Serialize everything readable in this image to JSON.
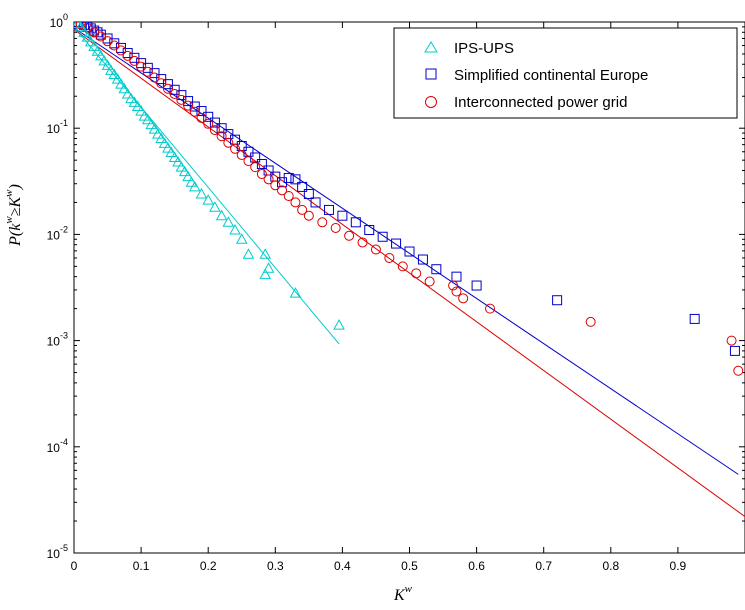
{
  "chart_data": {
    "type": "scatter",
    "xlabel": {
      "base": "K",
      "sup": "w"
    },
    "ylabel": {
      "p": "P(",
      "k": "k",
      "sup1": "w",
      "geq": "≥",
      "K": "K",
      "sup2": "w",
      "close": ")"
    },
    "xlim": [
      0,
      1
    ],
    "ylim": [
      1e-05,
      1
    ],
    "yscale": "log",
    "x_ticks": [
      "0",
      "0.1",
      "0.2",
      "0.3",
      "0.4",
      "0.5",
      "0.6",
      "0.7",
      "0.8",
      "0.9"
    ],
    "x_tick_values": [
      0,
      0.1,
      0.2,
      0.3,
      0.4,
      0.5,
      0.6,
      0.7,
      0.8,
      0.9
    ],
    "y_ticks": [
      {
        "base": "10",
        "exp": "0",
        "value": 1
      },
      {
        "base": "10",
        "exp": "-1",
        "value": 0.1
      },
      {
        "base": "10",
        "exp": "-2",
        "value": 0.01
      },
      {
        "base": "10",
        "exp": "-3",
        "value": 0.001
      },
      {
        "base": "10",
        "exp": "-4",
        "value": 0.0001
      },
      {
        "base": "10",
        "exp": "-5",
        "value": 1e-05
      }
    ],
    "grid": false,
    "legend_position": "top-right",
    "series": [
      {
        "name": "IPS-UPS",
        "marker": "triangle",
        "color": "#00cccc",
        "points": [
          [
            0.005,
            0.97
          ],
          [
            0.01,
            0.9
          ],
          [
            0.015,
            0.8
          ],
          [
            0.02,
            0.72
          ],
          [
            0.025,
            0.65
          ],
          [
            0.03,
            0.59
          ],
          [
            0.035,
            0.53
          ],
          [
            0.04,
            0.48
          ],
          [
            0.045,
            0.43
          ],
          [
            0.05,
            0.39
          ],
          [
            0.055,
            0.35
          ],
          [
            0.06,
            0.32
          ],
          [
            0.065,
            0.29
          ],
          [
            0.07,
            0.26
          ],
          [
            0.075,
            0.235
          ],
          [
            0.08,
            0.21
          ],
          [
            0.085,
            0.19
          ],
          [
            0.09,
            0.175
          ],
          [
            0.095,
            0.16
          ],
          [
            0.1,
            0.145
          ],
          [
            0.105,
            0.13
          ],
          [
            0.11,
            0.12
          ],
          [
            0.115,
            0.108
          ],
          [
            0.12,
            0.098
          ],
          [
            0.125,
            0.088
          ],
          [
            0.13,
            0.08
          ],
          [
            0.135,
            0.072
          ],
          [
            0.14,
            0.065
          ],
          [
            0.145,
            0.059
          ],
          [
            0.15,
            0.053
          ],
          [
            0.155,
            0.048
          ],
          [
            0.16,
            0.043
          ],
          [
            0.165,
            0.039
          ],
          [
            0.17,
            0.035
          ],
          [
            0.175,
            0.031
          ],
          [
            0.18,
            0.028
          ],
          [
            0.19,
            0.024
          ],
          [
            0.2,
            0.021
          ],
          [
            0.21,
            0.018
          ],
          [
            0.22,
            0.015
          ],
          [
            0.23,
            0.013
          ],
          [
            0.24,
            0.011
          ],
          [
            0.25,
            0.009
          ],
          [
            0.26,
            0.0065
          ],
          [
            0.285,
            0.0065
          ],
          [
            0.29,
            0.0048
          ],
          [
            0.285,
            0.0042
          ],
          [
            0.33,
            0.0028
          ],
          [
            0.395,
            0.0014
          ]
        ],
        "fit": {
          "x0": 0,
          "y0": 0.9,
          "x1": 0.395,
          "y1": 0.00093
        }
      },
      {
        "name": "Simplified continental Europe",
        "marker": "square",
        "color": "#0000cc",
        "points": [
          [
            0.005,
            1
          ],
          [
            0.01,
            0.97
          ],
          [
            0.015,
            0.94
          ],
          [
            0.02,
            0.9
          ],
          [
            0.025,
            0.87
          ],
          [
            0.03,
            0.83
          ],
          [
            0.035,
            0.8
          ],
          [
            0.04,
            0.76
          ],
          [
            0.05,
            0.7
          ],
          [
            0.06,
            0.63
          ],
          [
            0.07,
            0.57
          ],
          [
            0.08,
            0.51
          ],
          [
            0.09,
            0.46
          ],
          [
            0.1,
            0.41
          ],
          [
            0.11,
            0.37
          ],
          [
            0.12,
            0.33
          ],
          [
            0.13,
            0.29
          ],
          [
            0.14,
            0.26
          ],
          [
            0.15,
            0.23
          ],
          [
            0.16,
            0.205
          ],
          [
            0.17,
            0.18
          ],
          [
            0.18,
            0.16
          ],
          [
            0.19,
            0.145
          ],
          [
            0.2,
            0.128
          ],
          [
            0.21,
            0.113
          ],
          [
            0.22,
            0.1
          ],
          [
            0.23,
            0.088
          ],
          [
            0.24,
            0.078
          ],
          [
            0.25,
            0.068
          ],
          [
            0.26,
            0.06
          ],
          [
            0.27,
            0.053
          ],
          [
            0.28,
            0.046
          ],
          [
            0.29,
            0.04
          ],
          [
            0.3,
            0.035
          ],
          [
            0.31,
            0.031
          ],
          [
            0.32,
            0.034
          ],
          [
            0.33,
            0.033
          ],
          [
            0.34,
            0.028
          ],
          [
            0.35,
            0.024
          ],
          [
            0.36,
            0.02
          ],
          [
            0.38,
            0.017
          ],
          [
            0.4,
            0.015
          ],
          [
            0.42,
            0.013
          ],
          [
            0.44,
            0.011
          ],
          [
            0.46,
            0.0095
          ],
          [
            0.48,
            0.0082
          ],
          [
            0.5,
            0.0069
          ],
          [
            0.52,
            0.0058
          ],
          [
            0.54,
            0.0047
          ],
          [
            0.57,
            0.004
          ],
          [
            0.6,
            0.0033
          ],
          [
            0.72,
            0.0024
          ],
          [
            0.925,
            0.0016
          ],
          [
            0.985,
            0.0008
          ]
        ],
        "fit": {
          "x0": 0,
          "y0": 0.88,
          "x1": 0.99,
          "y1": 5.5e-05
        }
      },
      {
        "name": "Interconnected power grid",
        "marker": "circle",
        "color": "#dd0000",
        "points": [
          [
            0.01,
            0.95
          ],
          [
            0.02,
            0.88
          ],
          [
            0.03,
            0.8
          ],
          [
            0.04,
            0.73
          ],
          [
            0.05,
            0.66
          ],
          [
            0.06,
            0.6
          ],
          [
            0.07,
            0.54
          ],
          [
            0.08,
            0.48
          ],
          [
            0.09,
            0.43
          ],
          [
            0.1,
            0.38
          ],
          [
            0.11,
            0.34
          ],
          [
            0.12,
            0.3
          ],
          [
            0.13,
            0.265
          ],
          [
            0.14,
            0.235
          ],
          [
            0.15,
            0.21
          ],
          [
            0.16,
            0.185
          ],
          [
            0.17,
            0.163
          ],
          [
            0.18,
            0.143
          ],
          [
            0.19,
            0.125
          ],
          [
            0.2,
            0.11
          ],
          [
            0.21,
            0.096
          ],
          [
            0.22,
            0.084
          ],
          [
            0.23,
            0.073
          ],
          [
            0.24,
            0.064
          ],
          [
            0.25,
            0.056
          ],
          [
            0.26,
            0.049
          ],
          [
            0.27,
            0.043
          ],
          [
            0.28,
            0.037
          ],
          [
            0.29,
            0.033
          ],
          [
            0.3,
            0.029
          ],
          [
            0.31,
            0.026
          ],
          [
            0.32,
            0.023
          ],
          [
            0.33,
            0.02
          ],
          [
            0.34,
            0.017
          ],
          [
            0.35,
            0.015
          ],
          [
            0.37,
            0.013
          ],
          [
            0.39,
            0.0115
          ],
          [
            0.41,
            0.0097
          ],
          [
            0.43,
            0.0084
          ],
          [
            0.45,
            0.0072
          ],
          [
            0.47,
            0.006
          ],
          [
            0.49,
            0.005
          ],
          [
            0.51,
            0.0043
          ],
          [
            0.53,
            0.0036
          ],
          [
            0.565,
            0.0033
          ],
          [
            0.57,
            0.0029
          ],
          [
            0.58,
            0.0025
          ],
          [
            0.62,
            0.002
          ],
          [
            0.77,
            0.0015
          ],
          [
            0.98,
            0.001
          ],
          [
            0.99,
            0.00052
          ]
        ],
        "fit": {
          "x0": 0,
          "y0": 0.85,
          "x1": 1.0,
          "y1": 2.2e-05
        }
      }
    ]
  }
}
